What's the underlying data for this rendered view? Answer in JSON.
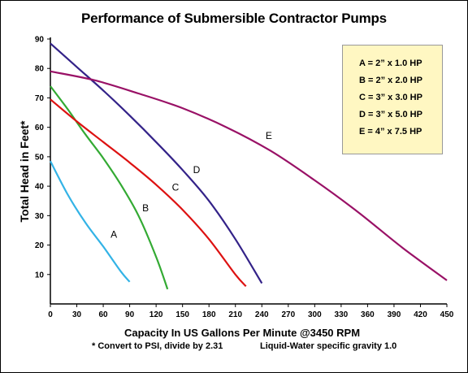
{
  "chart_data": {
    "type": "line",
    "title": "Performance of Submersible Contractor Pumps",
    "xlabel": "Capacity In US Gallons Per Minute @3450 RPM",
    "ylabel": "Total Head in Feet*",
    "xlim": [
      0,
      450
    ],
    "ylim": [
      0,
      90
    ],
    "x_ticks": [
      0,
      30,
      60,
      90,
      120,
      150,
      180,
      210,
      240,
      270,
      300,
      330,
      360,
      390,
      420,
      450
    ],
    "y_ticks": [
      10,
      20,
      30,
      40,
      50,
      60,
      70,
      80,
      90
    ],
    "grid": false,
    "legend_position": "top-right",
    "legend": [
      "A = 2” x 1.0 HP",
      "B = 2” x 2.0 HP",
      "C = 3” x 3.0 HP",
      "D = 3” x 5.0 HP",
      "E = 4” x 7.5 HP"
    ],
    "notes": [
      "* Convert to PSI, divide by 2.31",
      "Liquid-Water specific gravity 1.0"
    ],
    "series": [
      {
        "name": "A",
        "color": "#33b3e6",
        "x": [
          0,
          20,
          40,
          60,
          80,
          90
        ],
        "y": [
          48.5,
          37,
          27.5,
          19.5,
          11,
          7.5
        ]
      },
      {
        "name": "B",
        "color": "#33aa33",
        "x": [
          0,
          20,
          40,
          60,
          80,
          100,
          120,
          133
        ],
        "y": [
          74,
          66,
          57.5,
          49.5,
          40.5,
          30,
          16,
          5
        ]
      },
      {
        "name": "C",
        "color": "#dd1111",
        "x": [
          0,
          30,
          60,
          90,
          120,
          150,
          180,
          210,
          222
        ],
        "y": [
          69.5,
          62,
          55,
          48,
          40.5,
          32,
          22,
          10,
          6
        ]
      },
      {
        "name": "D",
        "color": "#332288",
        "x": [
          0,
          30,
          60,
          90,
          120,
          150,
          180,
          210,
          240
        ],
        "y": [
          88.5,
          80.5,
          72.5,
          64,
          55,
          45.5,
          35,
          22,
          7
        ]
      },
      {
        "name": "E",
        "color": "#991166",
        "x": [
          0,
          50,
          100,
          150,
          200,
          250,
          300,
          350,
          400,
          450
        ],
        "y": [
          79,
          76,
          71.5,
          66.5,
          60,
          52,
          42,
          31,
          19,
          8
        ]
      }
    ],
    "curve_labels": [
      {
        "text": "A",
        "x": 72,
        "y": 22.5
      },
      {
        "text": "B",
        "x": 108,
        "y": 31.5
      },
      {
        "text": "C",
        "x": 142,
        "y": 38.5
      },
      {
        "text": "D",
        "x": 166,
        "y": 44.5
      },
      {
        "text": "E",
        "x": 248,
        "y": 56
      }
    ]
  }
}
